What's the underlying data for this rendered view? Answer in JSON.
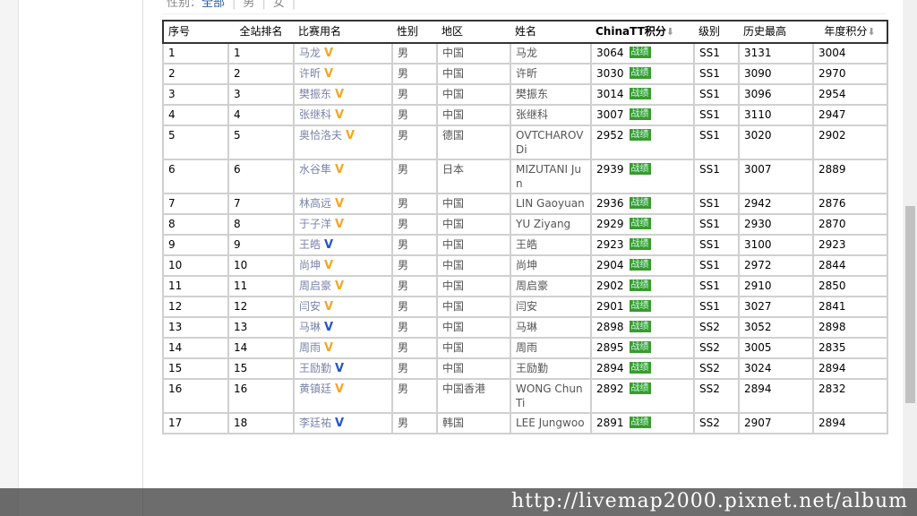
{
  "filter": {
    "label": "性别：",
    "options": [
      "全部",
      "男",
      "女"
    ]
  },
  "headers": [
    "序号",
    "全站排名",
    "比赛用名",
    "性别",
    "地区",
    "姓名",
    "ChinaTT积分",
    "级别",
    "历史最高",
    "年度积分"
  ],
  "badge_label": "战绩",
  "colors": {
    "v_orange": "#f5a623",
    "v_blue": "#2255cc",
    "badge": "#3a9b2e"
  },
  "rows": [
    [
      "1",
      "1",
      "马龙",
      "orange",
      "男",
      "中国",
      "马龙",
      "3064",
      "SS1",
      "3131",
      "3004"
    ],
    [
      "2",
      "2",
      "许昕",
      "orange",
      "男",
      "中国",
      "许昕",
      "3030",
      "SS1",
      "3090",
      "2970"
    ],
    [
      "3",
      "3",
      "樊振东",
      "orange",
      "男",
      "中国",
      "樊振东",
      "3014",
      "SS1",
      "3096",
      "2954"
    ],
    [
      "4",
      "4",
      "张继科",
      "orange",
      "男",
      "中国",
      "张继科",
      "3007",
      "SS1",
      "3110",
      "2947"
    ],
    [
      "5",
      "5",
      "奥恰洛夫",
      "orange",
      "男",
      "德国",
      "OVTCHAROV Di",
      "2952",
      "SS1",
      "3020",
      "2902"
    ],
    [
      "6",
      "6",
      "水谷隼",
      "orange",
      "男",
      "日本",
      "MIZUTANI Jun",
      "2939",
      "SS1",
      "3007",
      "2889"
    ],
    [
      "7",
      "7",
      "林高远",
      "orange",
      "男",
      "中国",
      "LIN Gaoyuan",
      "2936",
      "SS1",
      "2942",
      "2876"
    ],
    [
      "8",
      "8",
      "于子洋",
      "orange",
      "男",
      "中国",
      "YU Ziyang",
      "2929",
      "SS1",
      "2930",
      "2870"
    ],
    [
      "9",
      "9",
      "王皓",
      "blue",
      "男",
      "中国",
      "王皓",
      "2923",
      "SS1",
      "3100",
      "2923"
    ],
    [
      "10",
      "10",
      "尚坤",
      "orange",
      "男",
      "中国",
      "尚坤",
      "2904",
      "SS1",
      "2972",
      "2844"
    ],
    [
      "11",
      "11",
      "周启豪",
      "orange",
      "男",
      "中国",
      "周启豪",
      "2902",
      "SS1",
      "2910",
      "2850"
    ],
    [
      "12",
      "12",
      "闫安",
      "orange",
      "男",
      "中国",
      "闫安",
      "2901",
      "SS1",
      "3027",
      "2841"
    ],
    [
      "13",
      "13",
      "马琳",
      "blue",
      "男",
      "中国",
      "马琳",
      "2898",
      "SS2",
      "3052",
      "2898"
    ],
    [
      "14",
      "14",
      "周雨",
      "orange",
      "男",
      "中国",
      "周雨",
      "2895",
      "SS2",
      "3005",
      "2835"
    ],
    [
      "15",
      "15",
      "王励勤",
      "blue",
      "男",
      "中国",
      "王励勤",
      "2894",
      "SS2",
      "3024",
      "2894"
    ],
    [
      "16",
      "16",
      "黄镇廷",
      "orange",
      "男",
      "中国香港",
      "WONG Chun Ti",
      "2892",
      "SS2",
      "2894",
      "2832"
    ],
    [
      "17",
      "18",
      "李廷祐",
      "blue",
      "男",
      "韩国",
      "LEE Jungwoo",
      "2891",
      "SS2",
      "2907",
      "2894"
    ]
  ],
  "watermark": "http://livemap2000.pixnet.net/album"
}
